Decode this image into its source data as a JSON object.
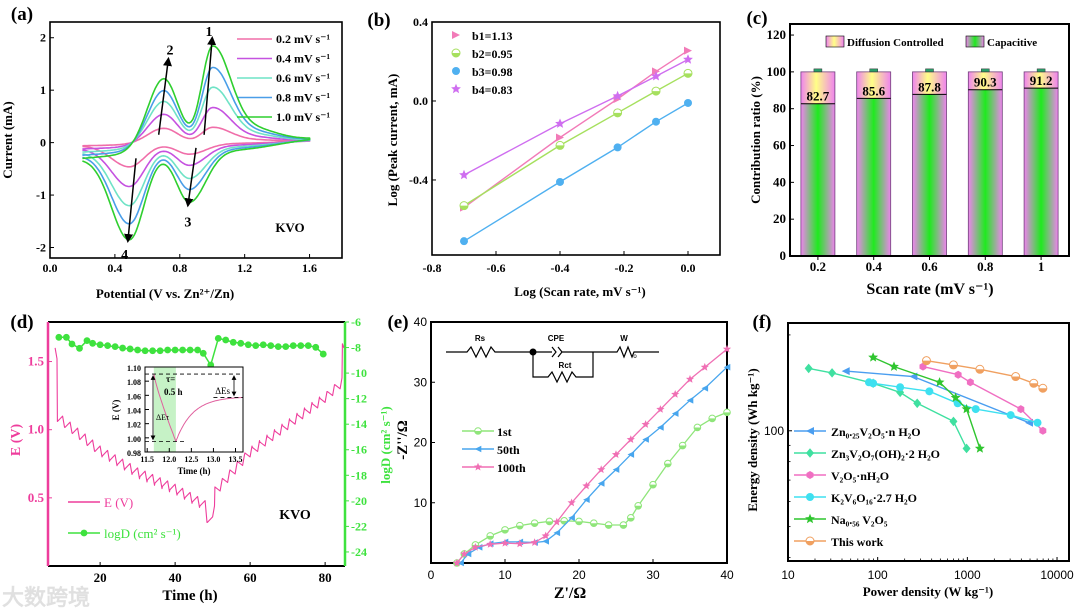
{
  "figure": {
    "watermark": "大数跨境"
  },
  "chart_data": [
    {
      "panel": "a",
      "panel_label": "(a)",
      "type": "line",
      "xlabel": "Potential (V vs. Zn²⁺/Zn)",
      "ylabel": "Current (mA)",
      "xlim": [
        0,
        1.8
      ],
      "ylim": [
        -2.2,
        2.3
      ],
      "xticks": [
        0,
        0.4,
        0.8,
        1.2,
        1.6
      ],
      "xtick_labels": [
        "0.0",
        "0.4",
        "0.8",
        "1.2",
        "1.6"
      ],
      "yticks": [
        -2,
        -1,
        0,
        1,
        2
      ],
      "ytick_labels": [
        "-2",
        "-1",
        "0",
        "1",
        "2"
      ],
      "annotation": "KVO",
      "peak_labels": [
        "1",
        "2",
        "3",
        "4"
      ],
      "peak_potentials": {
        "p1": 1.0,
        "p2": 0.7,
        "p3": 0.86,
        "p4": 0.49
      },
      "potential_window": [
        0.2,
        1.6
      ],
      "series": [
        {
          "name": "0.2 mV s⁻¹",
          "color": "#f06ea9",
          "p1": 0.28,
          "p2": 0.3,
          "p3": -0.2,
          "p4": -0.42,
          "start": -0.06,
          "end": 0.03
        },
        {
          "name": "0.4 mV s⁻¹",
          "color": "#c552e0",
          "p1": 0.65,
          "p2": 0.6,
          "p3": -0.38,
          "p4": -0.75,
          "start": -0.12,
          "end": 0.04
        },
        {
          "name": "0.6 mV s⁻¹",
          "color": "#6fe3c6",
          "p1": 1.03,
          "p2": 0.88,
          "p3": -0.6,
          "p4": -1.07,
          "start": -0.18,
          "end": 0.05
        },
        {
          "name": "0.8 mV s⁻¹",
          "color": "#4a9ee8",
          "p1": 1.4,
          "p2": 1.12,
          "p3": -0.78,
          "p4": -1.37,
          "start": -0.24,
          "end": 0.06
        },
        {
          "name": "1.0 mV s⁻¹",
          "color": "#2fcf2f",
          "p1": 1.8,
          "p2": 1.38,
          "p3": -0.99,
          "p4": -1.63,
          "start": -0.3,
          "end": 0.07
        }
      ]
    },
    {
      "panel": "b",
      "panel_label": "(b)",
      "type": "scatter",
      "xlabel": "Log (Scan rate, mV s⁻¹)",
      "ylabel": "Log (Peak current, mA)",
      "xlim": [
        -0.8,
        0.1
      ],
      "ylim": [
        -0.78,
        0.4
      ],
      "xticks": [
        -0.8,
        -0.6,
        -0.4,
        -0.2,
        0.0
      ],
      "xtick_labels": [
        "-0.8",
        "-0.6",
        "-0.4",
        "-0.2",
        "0.0"
      ],
      "yticks": [
        -0.4,
        0.0,
        0.4
      ],
      "ytick_labels": [
        "-0.4",
        "0.0",
        "0.4"
      ],
      "x": [
        -0.7,
        -0.4,
        -0.22,
        -0.1,
        0.0
      ],
      "series": [
        {
          "name": "b1=1.13",
          "color": "#f27bb8",
          "marker": "tri-right",
          "values": [
            -0.54,
            -0.185,
            0.01,
            0.15,
            0.255
          ]
        },
        {
          "name": "b2=0.95",
          "color": "#a6e05e",
          "marker": "half-circle",
          "values": [
            -0.53,
            -0.225,
            -0.06,
            0.05,
            0.14
          ]
        },
        {
          "name": "b3=0.98",
          "color": "#4fb0f0",
          "marker": "circle",
          "values": [
            -0.71,
            -0.41,
            -0.235,
            -0.105,
            -0.01
          ]
        },
        {
          "name": "b4=0.83",
          "color": "#cf6ef0",
          "marker": "star",
          "values": [
            -0.375,
            -0.115,
            0.025,
            0.125,
            0.21
          ]
        }
      ]
    },
    {
      "panel": "c",
      "panel_label": "(c)",
      "type": "bar",
      "xlabel": "Scan rate (mV s⁻¹)",
      "ylabel": "Contribution ratio (%)",
      "ylim": [
        0,
        126
      ],
      "yticks": [
        0,
        20,
        40,
        60,
        80,
        100,
        120
      ],
      "ytick_labels": [
        "0",
        "20",
        "40",
        "60",
        "80",
        "100",
        "120"
      ],
      "categories": [
        "0.2",
        "0.4",
        "0.6",
        "0.8",
        "1"
      ],
      "series": [
        {
          "name": "Diffusion Controlled",
          "values": [
            17.3,
            14.4,
            12.2,
            9.7,
            8.8
          ]
        },
        {
          "name": "Capacitive",
          "values": [
            82.7,
            85.6,
            87.8,
            90.3,
            91.2
          ]
        }
      ],
      "data_labels": [
        "82.7",
        "85.6",
        "87.8",
        "90.3",
        "91.2"
      ],
      "legend": "top-right"
    },
    {
      "panel": "d",
      "panel_label": "(d)",
      "type": "line",
      "xlabel": "Time (h)",
      "ylabel": "E (V)",
      "ylabel_right": "logD (cm² s⁻¹)",
      "xlim": [
        6.1,
        85.3
      ],
      "ylim": [
        0,
        1.79
      ],
      "ylim_right": [
        -25.1,
        -6
      ],
      "xticks": [
        20,
        40,
        60,
        80
      ],
      "xtick_labels": [
        "20",
        "40",
        "60",
        "80"
      ],
      "yticks": [
        0.5,
        1.0,
        1.5
      ],
      "ytick_labels": [
        "0.5",
        "1.0",
        "1.5"
      ],
      "yticks_right": [
        -6,
        -8,
        -10,
        -12,
        -14,
        -16,
        -18,
        -20,
        -22,
        -24
      ],
      "ytick_labels_right": [
        "-6",
        "-8",
        "-10",
        "-12",
        "-14",
        "-16",
        "-18",
        "-20",
        "-22",
        "-24"
      ],
      "annotation": "KVO",
      "legend": [
        "E (V)",
        "logD (cm² s⁻¹)"
      ],
      "E_series": {
        "color": "#ee3d9c",
        "pulse_period_h": 2,
        "pulse_length_h": 0.5,
        "pulse_amplitude_V": 0.08,
        "discharge_envelope": [
          [
            8,
            1.6
          ],
          [
            9,
            1.3
          ],
          [
            10,
            1.1
          ],
          [
            20,
            0.88
          ],
          [
            30,
            0.72
          ],
          [
            40,
            0.6
          ],
          [
            48,
            0.48
          ],
          [
            50,
            0.36
          ]
        ],
        "charge_envelope": [
          [
            50,
            0.36
          ],
          [
            52,
            0.55
          ],
          [
            60,
            0.8
          ],
          [
            70,
            1.0
          ],
          [
            80,
            1.2
          ],
          [
            84,
            1.3
          ],
          [
            85,
            1.6
          ]
        ]
      },
      "logD_series": {
        "color": "#3ee23e",
        "t": [
          9,
          11,
          12.5,
          14.5,
          16.5,
          18,
          20,
          22,
          24,
          26,
          28,
          30,
          32,
          34,
          36,
          38,
          40,
          42,
          44,
          46,
          47.5,
          49.5,
          51.5,
          53.5,
          55.5,
          57.5,
          59.5,
          61.5,
          63.5,
          65.5,
          67.5,
          69.5,
          71.5,
          73.5,
          75.5,
          77.5,
          79.5
        ],
        "values": [
          -7.2,
          -7.2,
          -7.72,
          -8.06,
          -7.46,
          -7.67,
          -7.78,
          -7.85,
          -7.93,
          -8.04,
          -8.11,
          -8.19,
          -8.25,
          -8.25,
          -8.25,
          -8.19,
          -8.19,
          -8.19,
          -8.19,
          -8.19,
          -8.45,
          -9.37,
          -7.28,
          -7.41,
          -7.59,
          -7.67,
          -7.78,
          -7.85,
          -7.78,
          -7.85,
          -7.93,
          -7.93,
          -7.85,
          -7.85,
          -7.85,
          -7.98,
          -8.51
        ]
      },
      "inset": {
        "xlabel": "Time (h)",
        "ylabel": "E (V)",
        "xlim": [
          11.45,
          13.67
        ],
        "ylim": [
          0.98,
          1.1
        ],
        "xticks": [
          11.5,
          12.0,
          12.5,
          13.0,
          13.5
        ],
        "xtick_labels": [
          "11.5",
          "12.0",
          "12.5",
          "13.0",
          "13.5"
        ],
        "yticks": [
          0.98,
          1.0,
          1.02,
          1.04,
          1.06,
          1.08,
          1.1
        ],
        "ytick_labels": [
          "0.98",
          "1.00",
          "1.02",
          "1.04",
          "1.06",
          "1.08",
          "1.10"
        ],
        "pulse_start": 11.65,
        "pulse_end": 12.15,
        "E_start": 1.09,
        "E_pulse_end": 0.995,
        "E_relaxed": 1.057,
        "tau_label": "τ=",
        "tau_value": "0.5 h",
        "delta_e_tau": "ΔEτ",
        "delta_e_s": "ΔEs"
      }
    },
    {
      "panel": "e",
      "panel_label": "(e)",
      "type": "line",
      "xlabel": "Z'/Ω",
      "ylabel": "-Z''/Ω",
      "xlim": [
        0,
        40
      ],
      "ylim": [
        0,
        40
      ],
      "xticks": [
        0,
        10,
        20,
        30,
        40
      ],
      "xtick_labels": [
        "0",
        "10",
        "20",
        "30",
        "40"
      ],
      "yticks": [
        10,
        20,
        30,
        40
      ],
      "ytick_labels": [
        "10",
        "20",
        "30",
        "40"
      ],
      "circuit": {
        "rs": "Rs",
        "cpe": "CPE",
        "rct": "Rct",
        "w": "W",
        "w_sub": "o"
      },
      "series": [
        {
          "name": "1st",
          "color": "#8fe57a",
          "marker": "half-circle",
          "points": [
            [
              3.5,
              0
            ],
            [
              4.5,
              1.5
            ],
            [
              6,
              3
            ],
            [
              8,
              4.5
            ],
            [
              10,
              5.5
            ],
            [
              12,
              6.2
            ],
            [
              14,
              6.6
            ],
            [
              16,
              6.9
            ],
            [
              18,
              7
            ],
            [
              20,
              6.9
            ],
            [
              22,
              6.6
            ],
            [
              24,
              6.3
            ],
            [
              26,
              6.3
            ],
            [
              27,
              7.5
            ],
            [
              28,
              9.5
            ],
            [
              30,
              13
            ],
            [
              32,
              16.5
            ],
            [
              34,
              19.5
            ],
            [
              36,
              22.5
            ],
            [
              38,
              24
            ],
            [
              40,
              25
            ]
          ]
        },
        {
          "name": "50th",
          "color": "#48a6ee",
          "marker": "tri-left",
          "points": [
            [
              4,
              0
            ],
            [
              5,
              1.5
            ],
            [
              6.5,
              2.6
            ],
            [
              8,
              3.2
            ],
            [
              10,
              3.5
            ],
            [
              12,
              3.5
            ],
            [
              14,
              3.4
            ],
            [
              15.5,
              3.6
            ],
            [
              17,
              5
            ],
            [
              19,
              7.5
            ],
            [
              21,
              10.5
            ],
            [
              23,
              13.2
            ],
            [
              25,
              15.5
            ],
            [
              27,
              18
            ],
            [
              29,
              20.5
            ],
            [
              31,
              22.5
            ],
            [
              33,
              24.8
            ],
            [
              35,
              27
            ],
            [
              37,
              29
            ],
            [
              40,
              32.5
            ]
          ]
        },
        {
          "name": "100th",
          "color": "#f06fb4",
          "marker": "star",
          "points": [
            [
              3.5,
              0
            ],
            [
              4.5,
              1.5
            ],
            [
              6,
              2.6
            ],
            [
              8,
              3.1
            ],
            [
              10,
              3.3
            ],
            [
              12,
              3.2
            ],
            [
              14,
              3.4
            ],
            [
              15.5,
              4.5
            ],
            [
              17,
              6.8
            ],
            [
              19,
              10
            ],
            [
              21,
              12.8
            ],
            [
              23,
              15.5
            ],
            [
              25,
              18
            ],
            [
              27,
              20.5
            ],
            [
              29,
              23
            ],
            [
              31,
              25.5
            ],
            [
              33,
              28
            ],
            [
              35,
              30.5
            ],
            [
              37,
              32.5
            ],
            [
              40,
              35.5
            ]
          ]
        }
      ]
    },
    {
      "panel": "f",
      "panel_label": "(f)",
      "type": "scatter",
      "xlabel": "Power density (W kg⁻¹)",
      "ylabel": "Energy density (Wh kg⁻¹)",
      "xscale": "log",
      "yscale": "log",
      "xlim": [
        10,
        13600
      ],
      "ylim": [
        39,
        218
      ],
      "xticks": [
        10,
        100,
        1000,
        10000
      ],
      "xtick_labels": [
        "10",
        "100",
        "1000",
        "10000"
      ],
      "yticks": [
        100
      ],
      "ytick_labels": [
        "100"
      ],
      "series": [
        {
          "name": "Zn₀.₂₅V₂O₅·n H₂O",
          "color": "#4a9ef0",
          "marker": "tri-left",
          "points": [
            [
              44,
              154
            ],
            [
              250,
              148
            ],
            [
              4870,
              106
            ]
          ]
        },
        {
          "name": "Zn₃V₂O₇(OH)₂·2 H₂O",
          "color": "#3fe0a0",
          "marker": "diamond",
          "points": [
            [
              17,
              157
            ],
            [
              31,
              152
            ],
            [
              89,
              141
            ],
            [
              178,
              132
            ],
            [
              276,
              122
            ],
            [
              700,
              107
            ],
            [
              980,
              88
            ]
          ]
        },
        {
          "name": "V₂O₅·nH₂O",
          "color": "#f06fc2",
          "marker": "hexagon",
          "points": [
            [
              320,
              159
            ],
            [
              790,
              150
            ],
            [
              1080,
              142
            ],
            [
              3950,
              117
            ],
            [
              6950,
              100
            ]
          ]
        },
        {
          "name": "K₂V₆O₁₆·2.7 H₂O",
          "color": "#3ee0f0",
          "marker": "circle",
          "points": [
            [
              80,
              142
            ],
            [
              89,
              141
            ],
            [
              178,
              137
            ],
            [
              377,
              133
            ],
            [
              780,
              122
            ],
            [
              1240,
              117
            ],
            [
              3040,
              112
            ],
            [
              6060,
              106
            ]
          ]
        },
        {
          "name": "Na₀.₅₆ V₂O₅",
          "color": "#2fc52f",
          "marker": "star",
          "points": [
            [
              89,
              170
            ],
            [
              152,
              159
            ],
            [
              490,
              142
            ],
            [
              740,
              127
            ],
            [
              980,
              117
            ],
            [
              1380,
              88
            ]
          ]
        },
        {
          "name": "This work",
          "color": "#f0a060",
          "marker": "half-circle",
          "points": [
            [
              350,
              166
            ],
            [
              700,
              161
            ],
            [
              1380,
              156
            ],
            [
              3460,
              148
            ],
            [
              5500,
              141
            ],
            [
              6950,
              136
            ]
          ]
        }
      ],
      "legend": "bottom-left"
    }
  ]
}
